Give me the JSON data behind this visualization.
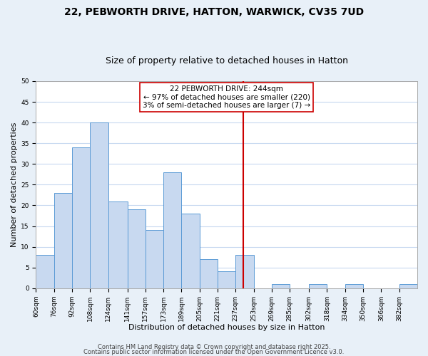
{
  "title_line1": "22, PEBWORTH DRIVE, HATTON, WARWICK, CV35 7UD",
  "title_line2": "Size of property relative to detached houses in Hatton",
  "xlabel": "Distribution of detached houses by size in Hatton",
  "ylabel": "Number of detached properties",
  "bar_edges": [
    60,
    76,
    92,
    108,
    124,
    141,
    157,
    173,
    189,
    205,
    221,
    237,
    253,
    269,
    285,
    302,
    318,
    334,
    350,
    366,
    382
  ],
  "bar_heights": [
    8,
    23,
    34,
    40,
    21,
    19,
    14,
    28,
    18,
    7,
    4,
    8,
    0,
    1,
    0,
    1,
    0,
    1,
    0,
    0,
    1
  ],
  "tick_labels": [
    "60sqm",
    "76sqm",
    "92sqm",
    "108sqm",
    "124sqm",
    "141sqm",
    "157sqm",
    "173sqm",
    "189sqm",
    "205sqm",
    "221sqm",
    "237sqm",
    "253sqm",
    "269sqm",
    "285sqm",
    "302sqm",
    "318sqm",
    "334sqm",
    "350sqm",
    "366sqm",
    "382sqm"
  ],
  "bar_color": "#c8d9f0",
  "bar_edge_color": "#5b9bd5",
  "grid_color": "#c8d9f0",
  "vline_x": 244,
  "vline_color": "#cc0000",
  "annotation_text": "22 PEBWORTH DRIVE: 244sqm\n← 97% of detached houses are smaller (220)\n3% of semi-detached houses are larger (7) →",
  "ylim": [
    0,
    50
  ],
  "yticks": [
    0,
    5,
    10,
    15,
    20,
    25,
    30,
    35,
    40,
    45,
    50
  ],
  "footer_line1": "Contains HM Land Registry data © Crown copyright and database right 2025.",
  "footer_line2": "Contains public sector information licensed under the Open Government Licence v3.0.",
  "bg_color": "#e8f0f8",
  "plot_bg_color": "#ffffff",
  "title_fontsize": 10,
  "subtitle_fontsize": 9,
  "label_fontsize": 8,
  "tick_fontsize": 6.5,
  "footer_fontsize": 6,
  "annot_fontsize": 7.5
}
